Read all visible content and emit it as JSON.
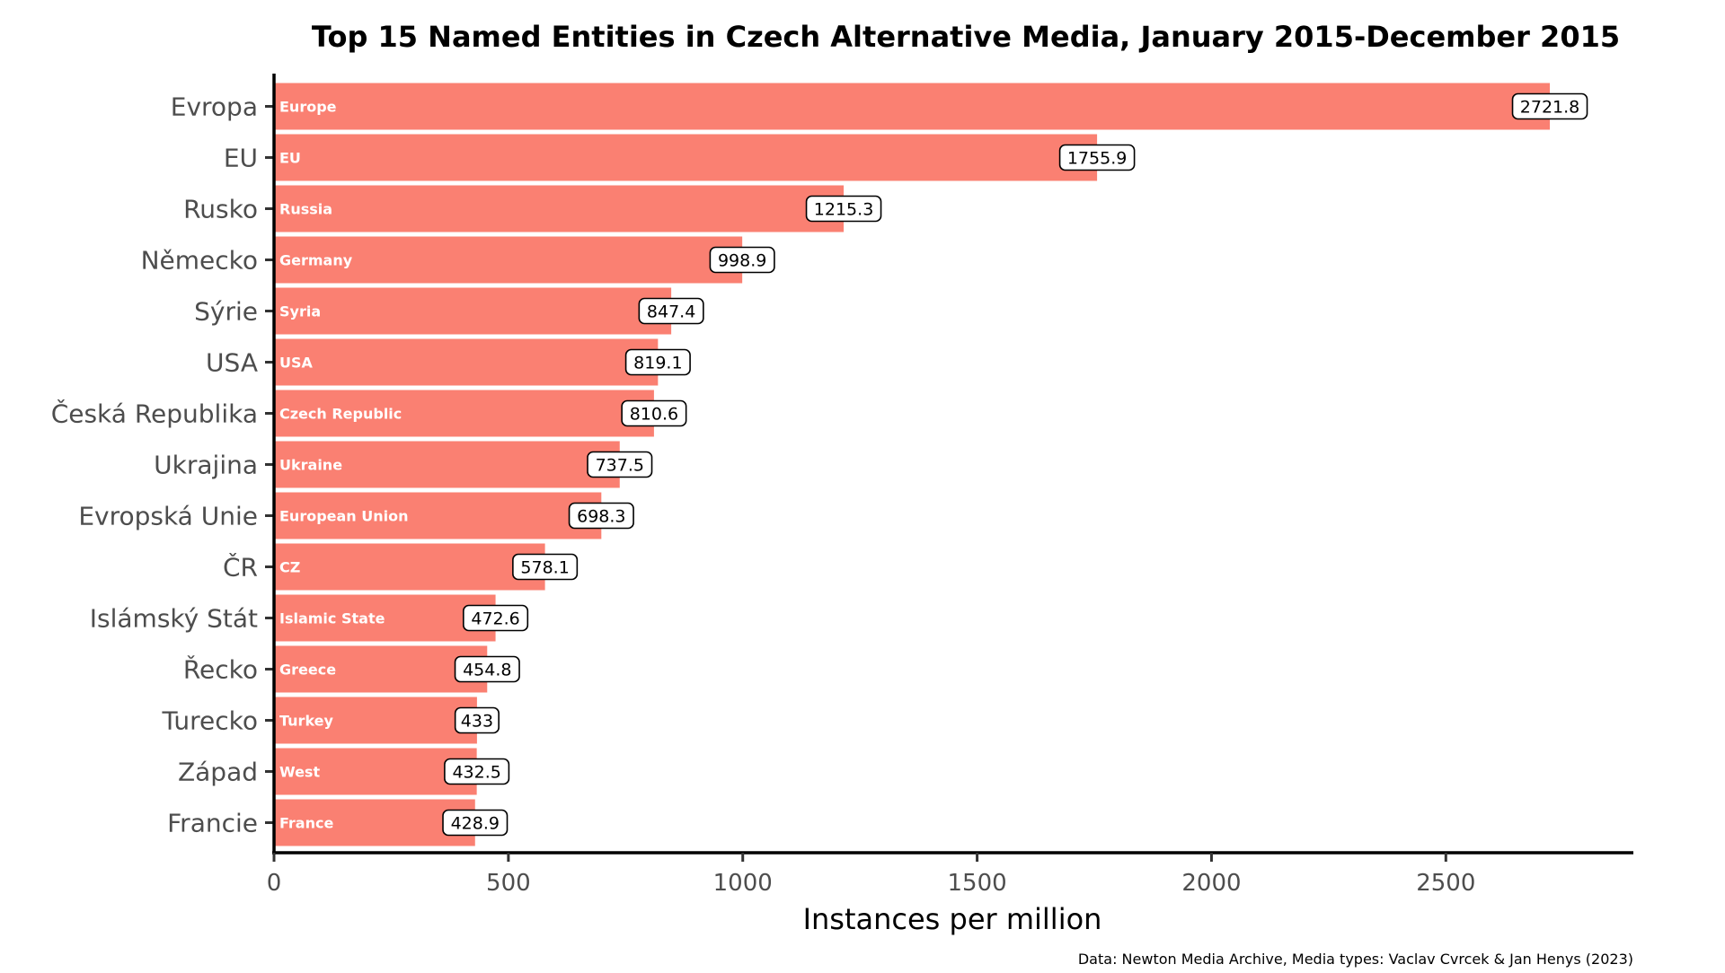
{
  "chart_data": {
    "type": "bar",
    "orientation": "horizontal",
    "title": "Top 15 Named Entities in Czech Alternative Media, January 2015-December 2015",
    "xlabel": "Instances per million",
    "ylabel": "",
    "xlim": [
      0,
      2900
    ],
    "x_ticks": [
      0,
      500,
      1000,
      1500,
      2000,
      2500
    ],
    "grid": false,
    "bar_color": "#fa8072",
    "categories": [
      "Evropa",
      "EU",
      "Rusko",
      "Německo",
      "Sýrie",
      "USA",
      "Česká Republika",
      "Ukrajina",
      "Evropská Unie",
      "ČR",
      "Islámský Stát",
      "Řecko",
      "Turecko",
      "Západ",
      "Francie"
    ],
    "inner_labels": [
      "Europe",
      "EU",
      "Russia",
      "Germany",
      "Syria",
      "USA",
      "Czech Republic",
      "Ukraine",
      "European Union",
      "CZ",
      "Islamic State",
      "Greece",
      "Turkey",
      "West",
      "France"
    ],
    "values": [
      2721.8,
      1755.9,
      1215.3,
      998.9,
      847.4,
      819.1,
      810.6,
      737.5,
      698.3,
      578.1,
      472.6,
      454.8,
      433,
      432.5,
      428.9
    ],
    "value_labels": [
      "2721.8",
      "1755.9",
      "1215.3",
      "998.9",
      "847.4",
      "819.1",
      "810.6",
      "737.5",
      "698.3",
      "578.1",
      "472.6",
      "454.8",
      "433",
      "432.5",
      "428.9"
    ],
    "caption": "Data: Newton Media Archive, Media types: Vaclav Cvrcek & Jan Henys (2023)"
  }
}
